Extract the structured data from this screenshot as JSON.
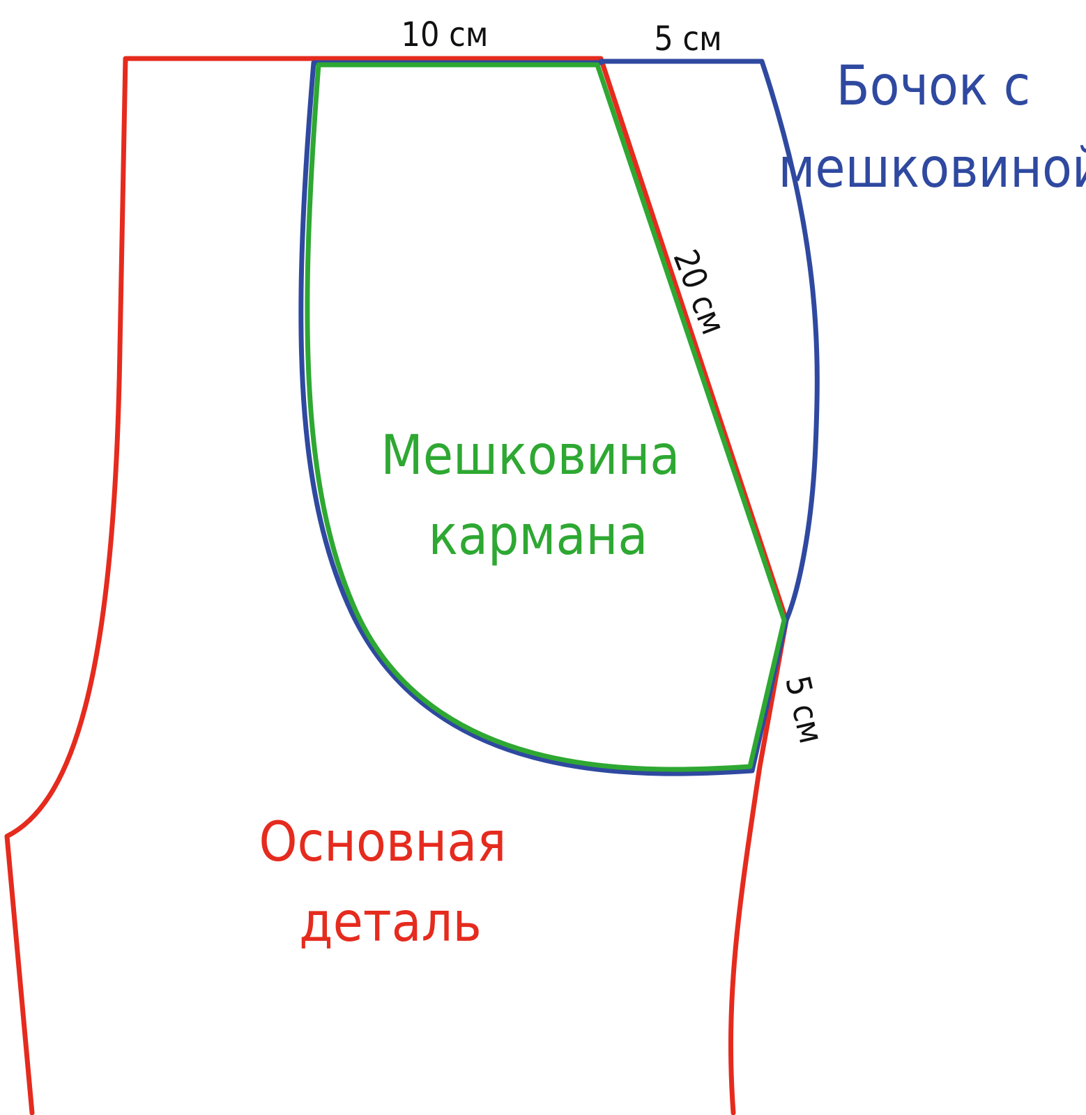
{
  "colors": {
    "main_piece": "#e52b1e",
    "side_piece": "#2f49a0",
    "pocket_bag": "#2ea832",
    "dimension_text": "#111111",
    "background": "#ffffff"
  },
  "dimensions": {
    "top_pocket_width": "10 см",
    "top_side_width": "5 см",
    "diagonal_length": "20 см",
    "lower_side_length": "5 см"
  },
  "labels": {
    "side_piece": {
      "line1": "Бочок с",
      "line2": "мешковиной"
    },
    "pocket_bag": {
      "line1": "Мешковина",
      "line2": "кармана"
    },
    "main_piece": {
      "line1": "Основная",
      "line2": "деталь"
    }
  }
}
